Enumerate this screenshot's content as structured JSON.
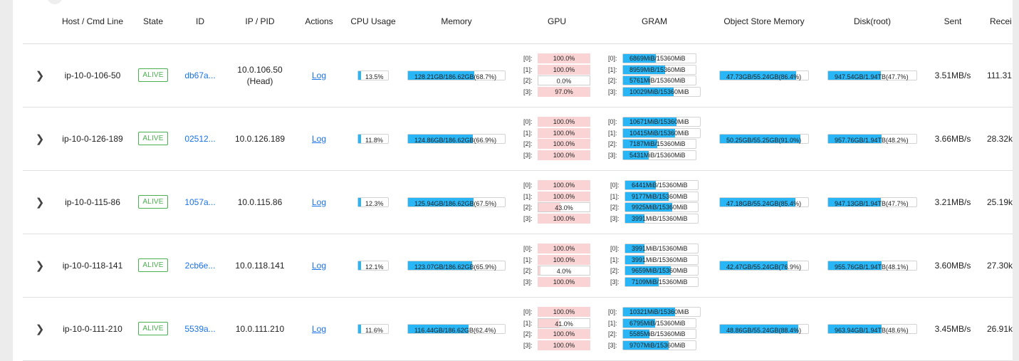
{
  "headers": {
    "host": "Host / Cmd Line",
    "state": "State",
    "id": "ID",
    "ip": "IP / PID",
    "actions": "Actions",
    "cpu": "CPU Usage",
    "memory": "Memory",
    "gpu": "GPU",
    "gram": "GRAM",
    "obj": "Object Store Memory",
    "disk": "Disk(root)",
    "sent": "Sent",
    "recv": "Recei"
  },
  "rows": [
    {
      "host": "ip-10-0-106-50",
      "state": "ALIVE",
      "id": "db67a...",
      "ip": "10.0.106.50",
      "ip_sub": "(Head)",
      "log": "Log",
      "cpu": "13.5%",
      "cpu_pct": 13.5,
      "memory": "128.21GB/186.62GB(68.7%)",
      "mem_pct": 68.7,
      "gpu": [
        {
          "i": "[0]:",
          "v": "100.0%",
          "p": 100
        },
        {
          "i": "[1]:",
          "v": "100.0%",
          "p": 100
        },
        {
          "i": "[2]:",
          "v": "0.0%",
          "p": 0
        },
        {
          "i": "[3]:",
          "v": "97.0%",
          "p": 97
        }
      ],
      "gram": [
        {
          "i": "[0]:",
          "v": "6869MiB/15360MiB",
          "p": 44.7
        },
        {
          "i": "[1]:",
          "v": "8959MiB/15360MiB",
          "p": 58.3
        },
        {
          "i": "[2]:",
          "v": "5761MiB/15360MiB",
          "p": 37.5
        },
        {
          "i": "[3]:",
          "v": "10029MiB/15360MiB",
          "p": 65.3
        }
      ],
      "obj": "47.73GB/55.24GB(86.4%)",
      "obj_pct": 86.4,
      "disk": "947.54GB/1.94TB(47.7%)",
      "disk_pct": 47.7,
      "sent": "3.51MB/s",
      "recv": "111.31"
    },
    {
      "host": "ip-10-0-126-189",
      "state": "ALIVE",
      "id": "02512...",
      "ip": "10.0.126.189",
      "ip_sub": "",
      "log": "Log",
      "cpu": "11.8%",
      "cpu_pct": 11.8,
      "memory": "124.86GB/186.62GB(66.9%)",
      "mem_pct": 66.9,
      "gpu": [
        {
          "i": "[0]:",
          "v": "100.0%",
          "p": 100
        },
        {
          "i": "[1]:",
          "v": "100.0%",
          "p": 100
        },
        {
          "i": "[2]:",
          "v": "100.0%",
          "p": 100
        },
        {
          "i": "[3]:",
          "v": "100.0%",
          "p": 100
        }
      ],
      "gram": [
        {
          "i": "[0]:",
          "v": "10671MiB/15360MiB",
          "p": 69.5
        },
        {
          "i": "[1]:",
          "v": "10415MiB/15360MiB",
          "p": 67.8
        },
        {
          "i": "[2]:",
          "v": "7187MiB/15360MiB",
          "p": 46.8
        },
        {
          "i": "[3]:",
          "v": "5431MiB/15360MiB",
          "p": 35.4
        }
      ],
      "obj": "50.25GB/55.25GB(91.0%)",
      "obj_pct": 91.0,
      "disk": "957.76GB/1.94TB(48.2%)",
      "disk_pct": 48.2,
      "sent": "3.66MB/s",
      "recv": "28.32k"
    },
    {
      "host": "ip-10-0-115-86",
      "state": "ALIVE",
      "id": "1057a...",
      "ip": "10.0.115.86",
      "ip_sub": "",
      "log": "Log",
      "cpu": "12.3%",
      "cpu_pct": 12.3,
      "memory": "125.94GB/186.62GB(67.5%)",
      "mem_pct": 67.5,
      "gpu": [
        {
          "i": "[0]:",
          "v": "100.0%",
          "p": 100
        },
        {
          "i": "[1]:",
          "v": "100.0%",
          "p": 100
        },
        {
          "i": "[2]:",
          "v": "43.0%",
          "p": 43
        },
        {
          "i": "[3]:",
          "v": "100.0%",
          "p": 100
        }
      ],
      "gram": [
        {
          "i": "[0]:",
          "v": "6441MiB/15360MiB",
          "p": 41.9
        },
        {
          "i": "[1]:",
          "v": "9177MiB/15360MiB",
          "p": 59.7
        },
        {
          "i": "[2]:",
          "v": "9925MiB/15360MiB",
          "p": 64.6
        },
        {
          "i": "[3]:",
          "v": "3991MiB/15360MiB",
          "p": 26.0
        }
      ],
      "obj": "47.18GB/55.24GB(85.4%)",
      "obj_pct": 85.4,
      "disk": "947.13GB/1.94TB(47.7%)",
      "disk_pct": 47.7,
      "sent": "3.21MB/s",
      "recv": "25.19k"
    },
    {
      "host": "ip-10-0-118-141",
      "state": "ALIVE",
      "id": "2cb6e...",
      "ip": "10.0.118.141",
      "ip_sub": "",
      "log": "Log",
      "cpu": "12.1%",
      "cpu_pct": 12.1,
      "memory": "123.07GB/186.62GB(65.9%)",
      "mem_pct": 65.9,
      "gpu": [
        {
          "i": "[0]:",
          "v": "100.0%",
          "p": 100
        },
        {
          "i": "[1]:",
          "v": "100.0%",
          "p": 100
        },
        {
          "i": "[2]:",
          "v": "4.0%",
          "p": 4
        },
        {
          "i": "[3]:",
          "v": "100.0%",
          "p": 100
        }
      ],
      "gram": [
        {
          "i": "[0]:",
          "v": "3991MiB/15360MiB",
          "p": 26.0
        },
        {
          "i": "[1]:",
          "v": "3991MiB/15360MiB",
          "p": 26.0
        },
        {
          "i": "[2]:",
          "v": "9659MiB/15360MiB",
          "p": 62.9
        },
        {
          "i": "[3]:",
          "v": "7109MiB/15360MiB",
          "p": 46.3
        }
      ],
      "obj": "42.47GB/55.24GB(76.9%)",
      "obj_pct": 76.9,
      "disk": "955.76GB/1.94TB(48.1%)",
      "disk_pct": 48.1,
      "sent": "3.60MB/s",
      "recv": "27.30k"
    },
    {
      "host": "ip-10-0-111-210",
      "state": "ALIVE",
      "id": "5539a...",
      "ip": "10.0.111.210",
      "ip_sub": "",
      "log": "Log",
      "cpu": "11.6%",
      "cpu_pct": 11.6,
      "memory": "116.44GB/186.62GB(62.4%)",
      "mem_pct": 62.4,
      "gpu": [
        {
          "i": "[0]:",
          "v": "100.0%",
          "p": 100
        },
        {
          "i": "[1]:",
          "v": "41.0%",
          "p": 41
        },
        {
          "i": "[2]:",
          "v": "100.0%",
          "p": 100
        },
        {
          "i": "[3]:",
          "v": "100.0%",
          "p": 100
        }
      ],
      "gram": [
        {
          "i": "[0]:",
          "v": "10321MiB/15360MiB",
          "p": 67.2
        },
        {
          "i": "[1]:",
          "v": "6795MiB/15360MiB",
          "p": 44.2
        },
        {
          "i": "[2]:",
          "v": "5585MiB/15360MiB",
          "p": 36.4
        },
        {
          "i": "[3]:",
          "v": "9707MiB/15360MiB",
          "p": 63.2
        }
      ],
      "obj": "48.86GB/55.24GB(88.4%)",
      "obj_pct": 88.4,
      "disk": "963.94GB/1.94TB(48.6%)",
      "disk_pct": 48.6,
      "sent": "3.45MB/s",
      "recv": "26.91k"
    }
  ]
}
